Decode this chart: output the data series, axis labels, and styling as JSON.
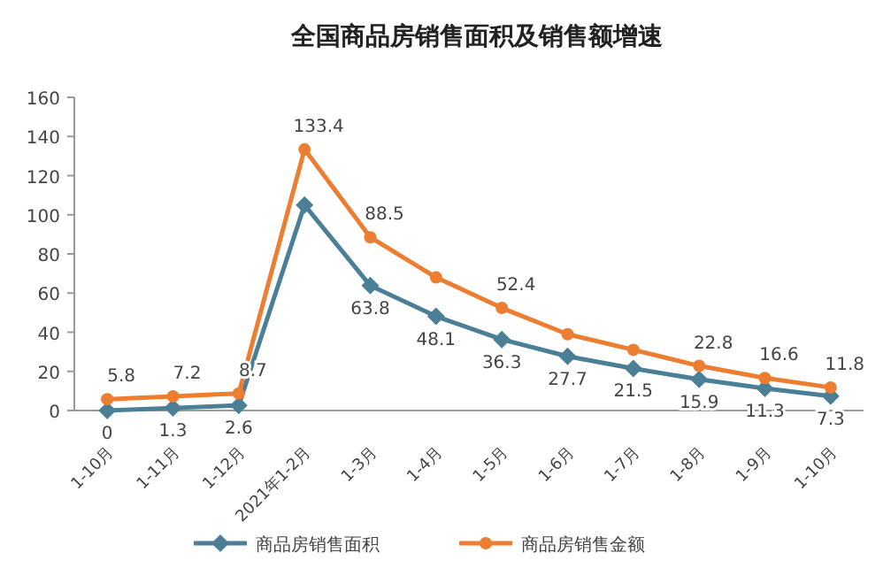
{
  "chart_data": {
    "type": "line",
    "title": "全国商品房销售面积及销售额增速",
    "categories": [
      "1-10月",
      "1-11月",
      "1-12月",
      "2021年1-2月",
      "1-3月",
      "1-4月",
      "1-5月",
      "1-6月",
      "1-7月",
      "1-8月",
      "1-9月",
      "1-10月"
    ],
    "series": [
      {
        "name": "商品房销售面积",
        "color": "#4a7f96",
        "marker": "diamond",
        "values": [
          0,
          1.3,
          2.6,
          105,
          63.8,
          48.1,
          36.3,
          27.7,
          21.5,
          15.9,
          11.3,
          7.3
        ],
        "value_labels": [
          "0",
          "1.3",
          "2.6",
          null,
          "63.8",
          "48.1",
          "36.3",
          "27.7",
          "21.5",
          "15.9",
          "11.3",
          "7.3"
        ]
      },
      {
        "name": "商品房销售金额",
        "color": "#ed7d31",
        "marker": "circle",
        "values": [
          5.8,
          7.2,
          8.7,
          133.4,
          88.5,
          68,
          52.4,
          39,
          31,
          22.8,
          16.6,
          11.8
        ],
        "value_labels": [
          "5.8",
          "7.2",
          "8.7",
          "133.4",
          "88.5",
          null,
          "52.4",
          null,
          null,
          "22.8",
          "16.6",
          "11.8"
        ]
      }
    ],
    "ylim": [
      0,
      160
    ],
    "yticks": [
      0,
      20,
      40,
      60,
      80,
      100,
      120,
      140,
      160
    ],
    "grid": false,
    "legend": "bottom"
  }
}
